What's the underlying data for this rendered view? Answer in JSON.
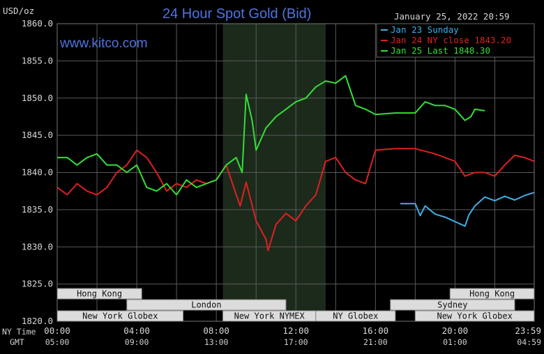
{
  "header": {
    "title": "24 Hour Spot Gold (Bid)",
    "units": "USD/oz",
    "timestamp": "January 25, 2022 20:59",
    "website": "www.kitco.com"
  },
  "colors": {
    "background": "#000000",
    "plot_background": "#000000",
    "nymex_shade": "#1c2a1c",
    "grid": "#5a5a5a",
    "title": "#4f74e0",
    "jan23": "#3fb0e8",
    "jan24": "#e02020",
    "jan25": "#33e033",
    "market_box": "#dcdcdc"
  },
  "row_labels": {
    "ny_time": "NY Time",
    "gmt": "GMT"
  },
  "markets": [
    {
      "label": "Hong Kong",
      "start": 0.0,
      "end": 4.25
    },
    {
      "label": "London",
      "start": 3.5,
      "end": 11.5
    },
    {
      "label": "New York Globex",
      "start": 0.0,
      "end": 6.33
    },
    {
      "label": "New York NYMEX",
      "start": 8.33,
      "end": 13.0
    },
    {
      "label": "NY Globex",
      "start": 13.0,
      "end": 17.0
    },
    {
      "label": "Hong Kong",
      "start": 19.75,
      "end": 24.0
    },
    {
      "label": "Sydney",
      "start": 16.75,
      "end": 23.0
    },
    {
      "label": "New York Globex",
      "start": 18.0,
      "end": 24.0
    }
  ],
  "chart_data": {
    "type": "line",
    "title": "24 Hour Spot Gold (Bid)",
    "ylabel": "USD/oz",
    "ylim": [
      1820,
      1860
    ],
    "yticks": [
      "1860.0",
      "1855.0",
      "1850.0",
      "1845.0",
      "1840.0",
      "1835.0",
      "1830.0",
      "1825.0",
      "1820.0"
    ],
    "xlim": [
      0,
      23.983
    ],
    "xticks_ny": [
      "00:00",
      "04:00",
      "08:00",
      "12:00",
      "16:00",
      "20:00",
      "23:59"
    ],
    "xticks_gmt": [
      "05:00",
      "09:00",
      "13:00",
      "17:00",
      "21:00",
      "01:00",
      "04:59"
    ],
    "nymex_shade": [
      8.33,
      13.5
    ],
    "grid": true,
    "legend": "top-right",
    "series": [
      {
        "name": "Jan 23 Sunday",
        "color": "#3fb0e8",
        "x": [
          17.25,
          18.0,
          18.25,
          18.5,
          19.0,
          19.5,
          20.0,
          20.5,
          20.7,
          21.0,
          21.5,
          22.0,
          22.5,
          23.0,
          23.5,
          23.98
        ],
        "y": [
          1835.8,
          1835.8,
          1834.2,
          1835.5,
          1834.4,
          1834.0,
          1833.4,
          1832.8,
          1834.3,
          1835.5,
          1836.7,
          1836.2,
          1836.8,
          1836.3,
          1836.9,
          1837.3
        ]
      },
      {
        "name": "Jan 24 NY close 1843.20",
        "color": "#e02020",
        "x": [
          0,
          0.5,
          1.0,
          1.5,
          2.0,
          2.5,
          3.0,
          3.5,
          4.0,
          4.5,
          5.0,
          5.5,
          6.0,
          6.5,
          7.0,
          7.5,
          8.0,
          8.5,
          9.0,
          9.2,
          9.5,
          10.0,
          10.5,
          10.6,
          11.0,
          11.5,
          12.0,
          12.5,
          13.0,
          13.5,
          14.0,
          14.5,
          15.0,
          15.5,
          16.0,
          17.0,
          18.0,
          19.0,
          20.0,
          20.5,
          21.0,
          21.5,
          22.0,
          22.5,
          23.0,
          23.5,
          23.98
        ],
        "y": [
          1838.0,
          1837.0,
          1838.5,
          1837.5,
          1837.0,
          1838.0,
          1840.0,
          1841.0,
          1843.0,
          1842.0,
          1840.0,
          1837.5,
          1838.5,
          1838.0,
          1839.0,
          1838.5,
          1839.0,
          1841.0,
          1837.0,
          1835.5,
          1838.7,
          1833.5,
          1831.0,
          1829.5,
          1833.0,
          1834.5,
          1833.5,
          1835.5,
          1837.0,
          1841.5,
          1842.0,
          1840.0,
          1839.0,
          1838.5,
          1843.0,
          1843.2,
          1843.2,
          1842.5,
          1841.5,
          1839.5,
          1840.0,
          1840.0,
          1839.5,
          1841.0,
          1842.3,
          1842.0,
          1841.5
        ]
      },
      {
        "name": "Jan 25 Last 1848.30",
        "color": "#33e033",
        "x": [
          0,
          0.5,
          1.0,
          1.5,
          2.0,
          2.5,
          3.0,
          3.5,
          4.0,
          4.5,
          5.0,
          5.5,
          6.0,
          6.5,
          7.0,
          7.5,
          8.0,
          8.5,
          9.0,
          9.3,
          9.5,
          9.8,
          10.0,
          10.5,
          11.0,
          11.5,
          12.0,
          12.5,
          13.0,
          13.5,
          14.0,
          14.5,
          15.0,
          15.5,
          16.0,
          17.0,
          18.0,
          18.5,
          19.0,
          19.5,
          20.0,
          20.5,
          20.8,
          21.0,
          21.5
        ],
        "y": [
          1842.0,
          1842.0,
          1841.0,
          1842.0,
          1842.5,
          1841.0,
          1841.0,
          1840.0,
          1841.0,
          1838.0,
          1837.5,
          1838.5,
          1837.0,
          1839.0,
          1838.0,
          1838.5,
          1839.0,
          1841.0,
          1842.0,
          1840.0,
          1850.5,
          1847.0,
          1843.0,
          1846.0,
          1847.5,
          1848.5,
          1849.5,
          1850.0,
          1851.5,
          1852.3,
          1852.0,
          1853.0,
          1849.0,
          1848.5,
          1847.8,
          1848.0,
          1848.0,
          1849.5,
          1849.0,
          1849.0,
          1848.5,
          1847.0,
          1847.5,
          1848.5,
          1848.3
        ]
      }
    ]
  }
}
